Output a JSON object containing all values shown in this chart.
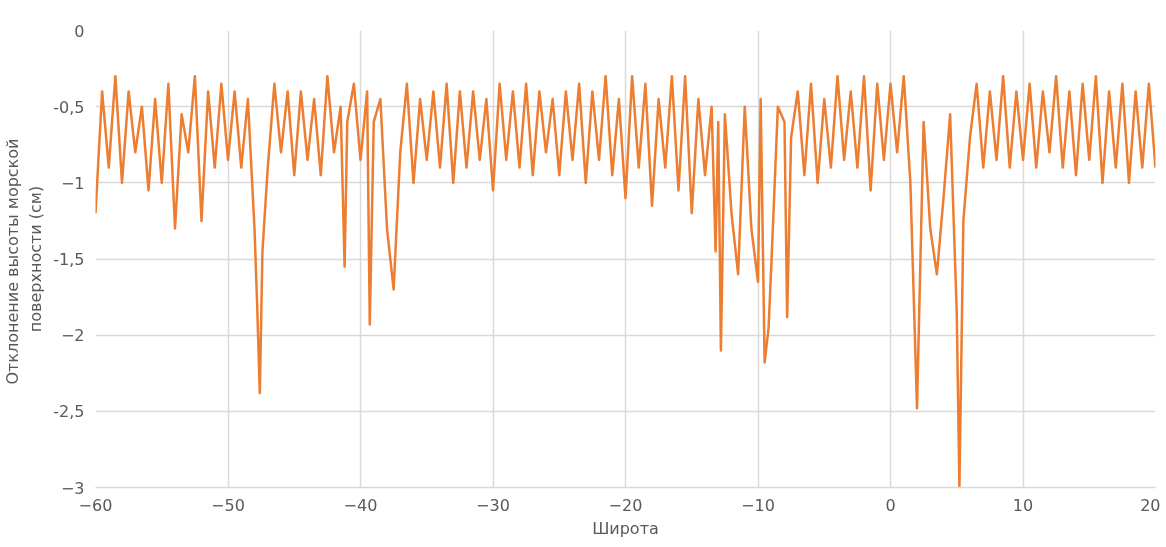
{
  "chart_data": {
    "type": "line",
    "xlabel": "Широта",
    "ylabel": "Отклонение  высоты морской\nповерхности (см)",
    "x": [
      -60,
      -59.5,
      -59,
      -58.5,
      -58,
      -57.5,
      -57,
      -56.5,
      -56,
      -55.5,
      -55,
      -54.5,
      -54,
      -53.5,
      -53,
      -52.5,
      -52,
      -51.5,
      -51,
      -50.5,
      -50,
      -49.5,
      -49,
      -48.5,
      -48,
      -47.8,
      -47.6,
      -47.4,
      -47,
      -46.5,
      -46,
      -45.5,
      -45,
      -44.5,
      -44,
      -43.5,
      -43,
      -42.5,
      -42,
      -41.5,
      -41.2,
      -41,
      -40.5,
      -40,
      -39.5,
      -39.3,
      -39,
      -38.5,
      -38,
      -37.5,
      -37,
      -36.5,
      -36,
      -35.5,
      -35,
      -34.5,
      -34,
      -33.5,
      -33,
      -32.5,
      -32,
      -31.5,
      -31,
      -30.5,
      -30,
      -29.5,
      -29,
      -28.5,
      -28,
      -27.5,
      -27,
      -26.5,
      -26,
      -25.5,
      -25,
      -24.5,
      -24,
      -23.5,
      -23,
      -22.5,
      -22,
      -21.5,
      -21,
      -20.5,
      -20,
      -19.5,
      -19,
      -18.5,
      -18,
      -17.5,
      -17,
      -16.5,
      -16,
      -15.5,
      -15,
      -14.5,
      -14,
      -13.5,
      -13.2,
      -13,
      -12.8,
      -12.5,
      -12,
      -11.5,
      -11,
      -10.5,
      -10,
      -9.8,
      -9.5,
      -9.2,
      -9,
      -8.5,
      -8,
      -7.8,
      -7.5,
      -7,
      -6.5,
      -6,
      -5.5,
      -5,
      -4.5,
      -4,
      -3.5,
      -3,
      -2.5,
      -2,
      -1.5,
      -1,
      -0.5,
      0,
      0.5,
      1,
      1.5,
      2,
      2.5,
      3,
      3.5,
      4,
      4.5,
      5,
      5.2,
      5.5,
      6,
      6.5,
      7,
      7.5,
      8,
      8.5,
      9,
      9.5,
      10,
      10.5,
      11,
      11.5,
      12,
      12.5,
      13,
      13.5,
      14,
      14.5,
      15,
      15.5,
      16,
      16.5,
      17,
      17.5,
      18,
      18.5,
      19,
      19.5,
      20
    ],
    "series": [
      {
        "color": "#ed7d31",
        "values": [
          -1.2,
          -0.4,
          -0.9,
          -0.3,
          -1.0,
          -0.4,
          -0.8,
          -0.5,
          -1.05,
          -0.45,
          -1.0,
          -0.35,
          -1.3,
          -0.55,
          -0.8,
          -0.3,
          -1.25,
          -0.4,
          -0.9,
          -0.35,
          -0.85,
          -0.4,
          -0.9,
          -0.45,
          -1.3,
          -1.8,
          -2.38,
          -1.45,
          -0.9,
          -0.35,
          -0.8,
          -0.4,
          -0.95,
          -0.4,
          -0.85,
          -0.45,
          -0.95,
          -0.3,
          -0.8,
          -0.5,
          -1.55,
          -0.6,
          -0.35,
          -0.85,
          -0.4,
          -1.93,
          -0.6,
          -0.45,
          -1.3,
          -1.7,
          -0.8,
          -0.35,
          -1.0,
          -0.45,
          -0.85,
          -0.4,
          -0.9,
          -0.35,
          -1.0,
          -0.4,
          -0.9,
          -0.4,
          -0.85,
          -0.45,
          -1.05,
          -0.35,
          -0.85,
          -0.4,
          -0.9,
          -0.35,
          -0.95,
          -0.4,
          -0.8,
          -0.45,
          -0.95,
          -0.4,
          -0.85,
          -0.35,
          -1.0,
          -0.4,
          -0.85,
          -0.3,
          -0.95,
          -0.45,
          -1.1,
          -0.3,
          -0.9,
          -0.35,
          -1.15,
          -0.45,
          -0.9,
          -0.3,
          -1.05,
          -0.3,
          -1.2,
          -0.45,
          -0.95,
          -0.5,
          -1.45,
          -0.6,
          -2.1,
          -0.55,
          -1.2,
          -1.6,
          -0.5,
          -1.3,
          -1.65,
          -0.45,
          -2.18,
          -1.95,
          -1.55,
          -0.5,
          -0.6,
          -1.88,
          -0.7,
          -0.4,
          -0.95,
          -0.35,
          -1.0,
          -0.45,
          -0.9,
          -0.3,
          -0.85,
          -0.4,
          -0.9,
          -0.3,
          -1.05,
          -0.35,
          -0.85,
          -0.35,
          -0.8,
          -0.3,
          -1.0,
          -2.48,
          -0.6,
          -1.3,
          -1.6,
          -1.1,
          -0.55,
          -1.85,
          -3.0,
          -1.25,
          -0.7,
          -0.35,
          -0.9,
          -0.4,
          -0.85,
          -0.3,
          -0.9,
          -0.4,
          -0.85,
          -0.35,
          -0.9,
          -0.4,
          -0.8,
          -0.3,
          -0.9,
          -0.4,
          -0.95,
          -0.35,
          -0.85,
          -0.3,
          -1.0,
          -0.4,
          -0.9,
          -0.35,
          -1.0,
          -0.4,
          -0.9,
          -0.35,
          -0.9
        ]
      }
    ],
    "xlim": [
      -60,
      20
    ],
    "xticks": [
      -60,
      -50,
      -40,
      -30,
      -20,
      -10,
      0,
      10,
      20
    ],
    "ylim": [
      -3,
      0
    ],
    "yticks": [
      0,
      {
        "value": -0.5,
        "label": "-0,5"
      },
      -1,
      {
        "value": -1.5,
        "label": "-1,5"
      },
      -2,
      {
        "value": -2.5,
        "label": "-2,5"
      },
      -3
    ],
    "grid": true,
    "line_style": "solid",
    "marker": "none"
  }
}
